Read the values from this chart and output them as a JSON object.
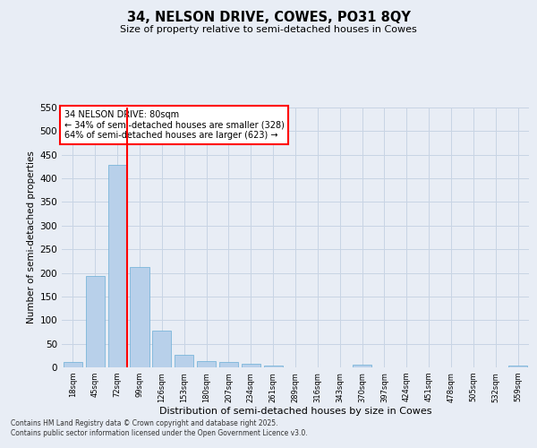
{
  "title": "34, NELSON DRIVE, COWES, PO31 8QY",
  "subtitle": "Size of property relative to semi-detached houses in Cowes",
  "xlabel": "Distribution of semi-detached houses by size in Cowes",
  "ylabel": "Number of semi-detached properties",
  "categories": [
    "18sqm",
    "45sqm",
    "72sqm",
    "99sqm",
    "126sqm",
    "153sqm",
    "180sqm",
    "207sqm",
    "234sqm",
    "261sqm",
    "289sqm",
    "316sqm",
    "343sqm",
    "370sqm",
    "397sqm",
    "424sqm",
    "451sqm",
    "478sqm",
    "505sqm",
    "532sqm",
    "559sqm"
  ],
  "values": [
    12,
    193,
    428,
    213,
    77,
    27,
    13,
    11,
    8,
    4,
    0,
    0,
    0,
    5,
    0,
    0,
    0,
    0,
    0,
    0,
    4
  ],
  "bar_color": "#b8d0ea",
  "bar_edgecolor": "#6aaed6",
  "grid_color": "#c8d4e4",
  "background_color": "#e8edf5",
  "red_line_x": 2.43,
  "annotation_title": "34 NELSON DRIVE: 80sqm",
  "annotation_line1": "← 34% of semi-detached houses are smaller (328)",
  "annotation_line2": "64% of semi-detached houses are larger (623) →",
  "ylim": [
    0,
    550
  ],
  "yticks": [
    0,
    50,
    100,
    150,
    200,
    250,
    300,
    350,
    400,
    450,
    500,
    550
  ],
  "footnote1": "Contains HM Land Registry data © Crown copyright and database right 2025.",
  "footnote2": "Contains public sector information licensed under the Open Government Licence v3.0."
}
